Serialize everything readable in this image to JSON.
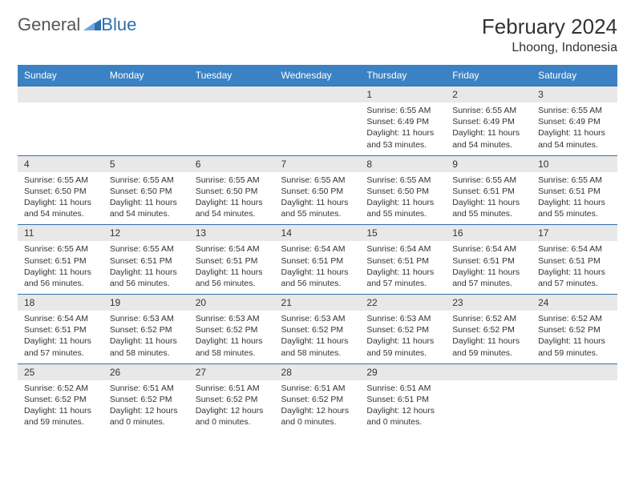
{
  "logo": {
    "general": "General",
    "blue": "Blue"
  },
  "title": "February 2024",
  "location": "Lhoong, Indonesia",
  "colors": {
    "header_bg": "#3b82c4",
    "header_text": "#ffffff",
    "daynum_bg": "#e8e8e8",
    "border": "#2f6fad",
    "text": "#333333"
  },
  "weekdays": [
    "Sunday",
    "Monday",
    "Tuesday",
    "Wednesday",
    "Thursday",
    "Friday",
    "Saturday"
  ],
  "weeks": [
    [
      null,
      null,
      null,
      null,
      {
        "n": "1",
        "sunrise": "Sunrise: 6:55 AM",
        "sunset": "Sunset: 6:49 PM",
        "daylight": "Daylight: 11 hours and 53 minutes."
      },
      {
        "n": "2",
        "sunrise": "Sunrise: 6:55 AM",
        "sunset": "Sunset: 6:49 PM",
        "daylight": "Daylight: 11 hours and 54 minutes."
      },
      {
        "n": "3",
        "sunrise": "Sunrise: 6:55 AM",
        "sunset": "Sunset: 6:49 PM",
        "daylight": "Daylight: 11 hours and 54 minutes."
      }
    ],
    [
      {
        "n": "4",
        "sunrise": "Sunrise: 6:55 AM",
        "sunset": "Sunset: 6:50 PM",
        "daylight": "Daylight: 11 hours and 54 minutes."
      },
      {
        "n": "5",
        "sunrise": "Sunrise: 6:55 AM",
        "sunset": "Sunset: 6:50 PM",
        "daylight": "Daylight: 11 hours and 54 minutes."
      },
      {
        "n": "6",
        "sunrise": "Sunrise: 6:55 AM",
        "sunset": "Sunset: 6:50 PM",
        "daylight": "Daylight: 11 hours and 54 minutes."
      },
      {
        "n": "7",
        "sunrise": "Sunrise: 6:55 AM",
        "sunset": "Sunset: 6:50 PM",
        "daylight": "Daylight: 11 hours and 55 minutes."
      },
      {
        "n": "8",
        "sunrise": "Sunrise: 6:55 AM",
        "sunset": "Sunset: 6:50 PM",
        "daylight": "Daylight: 11 hours and 55 minutes."
      },
      {
        "n": "9",
        "sunrise": "Sunrise: 6:55 AM",
        "sunset": "Sunset: 6:51 PM",
        "daylight": "Daylight: 11 hours and 55 minutes."
      },
      {
        "n": "10",
        "sunrise": "Sunrise: 6:55 AM",
        "sunset": "Sunset: 6:51 PM",
        "daylight": "Daylight: 11 hours and 55 minutes."
      }
    ],
    [
      {
        "n": "11",
        "sunrise": "Sunrise: 6:55 AM",
        "sunset": "Sunset: 6:51 PM",
        "daylight": "Daylight: 11 hours and 56 minutes."
      },
      {
        "n": "12",
        "sunrise": "Sunrise: 6:55 AM",
        "sunset": "Sunset: 6:51 PM",
        "daylight": "Daylight: 11 hours and 56 minutes."
      },
      {
        "n": "13",
        "sunrise": "Sunrise: 6:54 AM",
        "sunset": "Sunset: 6:51 PM",
        "daylight": "Daylight: 11 hours and 56 minutes."
      },
      {
        "n": "14",
        "sunrise": "Sunrise: 6:54 AM",
        "sunset": "Sunset: 6:51 PM",
        "daylight": "Daylight: 11 hours and 56 minutes."
      },
      {
        "n": "15",
        "sunrise": "Sunrise: 6:54 AM",
        "sunset": "Sunset: 6:51 PM",
        "daylight": "Daylight: 11 hours and 57 minutes."
      },
      {
        "n": "16",
        "sunrise": "Sunrise: 6:54 AM",
        "sunset": "Sunset: 6:51 PM",
        "daylight": "Daylight: 11 hours and 57 minutes."
      },
      {
        "n": "17",
        "sunrise": "Sunrise: 6:54 AM",
        "sunset": "Sunset: 6:51 PM",
        "daylight": "Daylight: 11 hours and 57 minutes."
      }
    ],
    [
      {
        "n": "18",
        "sunrise": "Sunrise: 6:54 AM",
        "sunset": "Sunset: 6:51 PM",
        "daylight": "Daylight: 11 hours and 57 minutes."
      },
      {
        "n": "19",
        "sunrise": "Sunrise: 6:53 AM",
        "sunset": "Sunset: 6:52 PM",
        "daylight": "Daylight: 11 hours and 58 minutes."
      },
      {
        "n": "20",
        "sunrise": "Sunrise: 6:53 AM",
        "sunset": "Sunset: 6:52 PM",
        "daylight": "Daylight: 11 hours and 58 minutes."
      },
      {
        "n": "21",
        "sunrise": "Sunrise: 6:53 AM",
        "sunset": "Sunset: 6:52 PM",
        "daylight": "Daylight: 11 hours and 58 minutes."
      },
      {
        "n": "22",
        "sunrise": "Sunrise: 6:53 AM",
        "sunset": "Sunset: 6:52 PM",
        "daylight": "Daylight: 11 hours and 59 minutes."
      },
      {
        "n": "23",
        "sunrise": "Sunrise: 6:52 AM",
        "sunset": "Sunset: 6:52 PM",
        "daylight": "Daylight: 11 hours and 59 minutes."
      },
      {
        "n": "24",
        "sunrise": "Sunrise: 6:52 AM",
        "sunset": "Sunset: 6:52 PM",
        "daylight": "Daylight: 11 hours and 59 minutes."
      }
    ],
    [
      {
        "n": "25",
        "sunrise": "Sunrise: 6:52 AM",
        "sunset": "Sunset: 6:52 PM",
        "daylight": "Daylight: 11 hours and 59 minutes."
      },
      {
        "n": "26",
        "sunrise": "Sunrise: 6:51 AM",
        "sunset": "Sunset: 6:52 PM",
        "daylight": "Daylight: 12 hours and 0 minutes."
      },
      {
        "n": "27",
        "sunrise": "Sunrise: 6:51 AM",
        "sunset": "Sunset: 6:52 PM",
        "daylight": "Daylight: 12 hours and 0 minutes."
      },
      {
        "n": "28",
        "sunrise": "Sunrise: 6:51 AM",
        "sunset": "Sunset: 6:52 PM",
        "daylight": "Daylight: 12 hours and 0 minutes."
      },
      {
        "n": "29",
        "sunrise": "Sunrise: 6:51 AM",
        "sunset": "Sunset: 6:51 PM",
        "daylight": "Daylight: 12 hours and 0 minutes."
      },
      null,
      null
    ]
  ]
}
